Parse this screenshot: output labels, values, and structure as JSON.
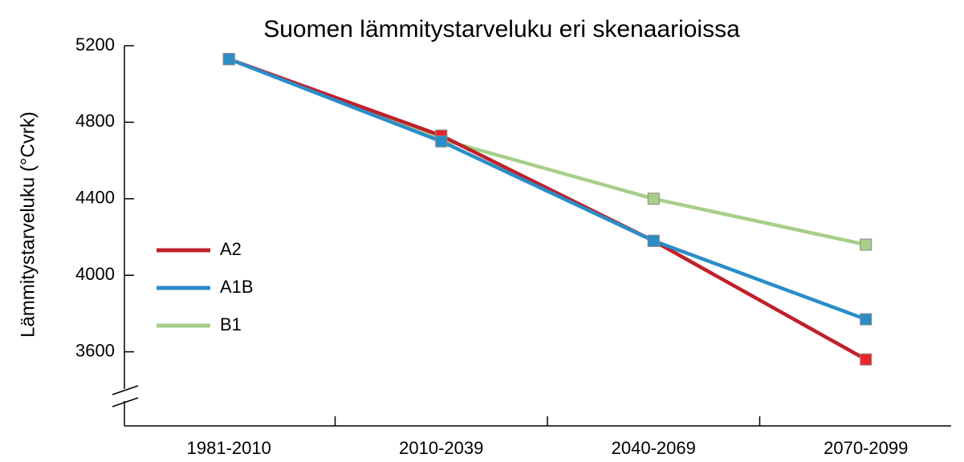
{
  "chart_data": {
    "type": "line",
    "title": "Suomen lämmitystarveluku eri skenaarioissa",
    "y_label": "Lämmitystarveluku (°Cvrk)",
    "categories": [
      "1981-2010",
      "2010-2039",
      "2040-2069",
      "2070-2099"
    ],
    "series": [
      {
        "name": "A2",
        "color": "#c0202a",
        "marker_color": "#e8262a",
        "values": [
          5130,
          4730,
          4180,
          3560
        ]
      },
      {
        "name": "A1B",
        "color": "#2a8dc8",
        "marker_color": "#2a8dc8",
        "values": [
          5130,
          4700,
          4180,
          3770
        ]
      },
      {
        "name": "B1",
        "color": "#a8cf8a",
        "marker_color": "#a8cf8a",
        "values": [
          5130,
          4710,
          4400,
          4160
        ]
      }
    ],
    "ylim": [
      3200,
      5200
    ],
    "yticks": [
      3600,
      4000,
      4400,
      4800,
      5200
    ],
    "grid": false,
    "legend": "left"
  }
}
